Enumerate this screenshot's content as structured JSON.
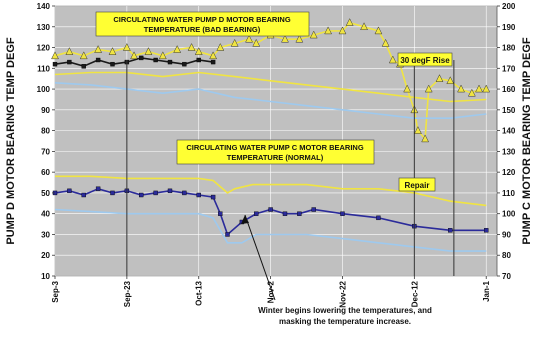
{
  "chart_data": {
    "type": "line",
    "title": "",
    "left_axis_label": "PUMP D MOTOR BEARING TEMP DEGF",
    "right_axis_label": "PUMP C MOTOR BEARING TEMP DEGF",
    "left_ylim": [
      10,
      140
    ],
    "left_yticks": [
      10,
      20,
      30,
      40,
      50,
      60,
      70,
      80,
      90,
      100,
      110,
      120,
      130,
      140
    ],
    "right_ylim": [
      70,
      200
    ],
    "right_yticks": [
      70,
      80,
      90,
      100,
      110,
      120,
      130,
      140,
      150,
      160,
      170,
      180,
      190,
      200
    ],
    "x_ticks": [
      {
        "label": "Sep-3",
        "day": 0
      },
      {
        "label": "Sep-23",
        "day": 20
      },
      {
        "label": "Oct-13",
        "day": 40
      },
      {
        "label": "Nov-2",
        "day": 60
      },
      {
        "label": "Nov-22",
        "day": 80
      },
      {
        "label": "Dec-12",
        "day": 100
      },
      {
        "label": "Jan-1",
        "day": 120
      }
    ],
    "grid": true,
    "background_color": "#c0c0c0",
    "annotations": {
      "pump_d_title": [
        "CIRCULATING WATER PUMP D MOTOR BEARING",
        "TEMPERATURE (BAD BEARING)"
      ],
      "pump_c_title": [
        "CIRCULATING WATER PUMP C MOTOR BEARING",
        "TEMPERATURE (NORMAL)"
      ],
      "rise": "30 degF Rise",
      "repair": "Repair",
      "winter_note": [
        "Winter begins lowering the temperatures, and",
        "masking the temperature increase."
      ]
    },
    "series": [
      {
        "axis": "right",
        "color": "#f0e442",
        "marker": "triangle",
        "points": [
          [
            0,
            176
          ],
          [
            4,
            178
          ],
          [
            8,
            176
          ],
          [
            12,
            179
          ],
          [
            16,
            178
          ],
          [
            20,
            180
          ],
          [
            22,
            176
          ],
          [
            26,
            178
          ],
          [
            30,
            176
          ],
          [
            34,
            179
          ],
          [
            38,
            180
          ],
          [
            40,
            178
          ],
          [
            44,
            176
          ],
          [
            46,
            180
          ],
          [
            50,
            182
          ],
          [
            54,
            184
          ],
          [
            56,
            182
          ],
          [
            60,
            186
          ],
          [
            64,
            184
          ],
          [
            68,
            184
          ],
          [
            72,
            186
          ],
          [
            76,
            188
          ],
          [
            80,
            188
          ],
          [
            82,
            192
          ],
          [
            86,
            190
          ],
          [
            90,
            188
          ],
          [
            92,
            182
          ],
          [
            94,
            174
          ],
          [
            96,
            172
          ],
          [
            98,
            160
          ],
          [
            100,
            150
          ],
          [
            101,
            140
          ],
          [
            103,
            136
          ],
          [
            104,
            160
          ],
          [
            107,
            165
          ],
          [
            110,
            164
          ],
          [
            113,
            160
          ],
          [
            116,
            158
          ],
          [
            118,
            160
          ],
          [
            120,
            160
          ]
        ]
      },
      {
        "axis": "right",
        "color": "#f0e442",
        "marker": "none",
        "points": [
          [
            0,
            167
          ],
          [
            10,
            168
          ],
          [
            20,
            168
          ],
          [
            30,
            166
          ],
          [
            40,
            168
          ],
          [
            50,
            166
          ],
          [
            60,
            164
          ],
          [
            70,
            162
          ],
          [
            80,
            160
          ],
          [
            90,
            158
          ],
          [
            100,
            156
          ],
          [
            110,
            154
          ],
          [
            120,
            155
          ]
        ]
      },
      {
        "axis": "right",
        "color": "#9ec9ee",
        "marker": "none",
        "points": [
          [
            0,
            163
          ],
          [
            10,
            162
          ],
          [
            20,
            160
          ],
          [
            30,
            158
          ],
          [
            40,
            160
          ],
          [
            50,
            156
          ],
          [
            60,
            154
          ],
          [
            70,
            152
          ],
          [
            80,
            150
          ],
          [
            90,
            148
          ],
          [
            100,
            146
          ],
          [
            110,
            146
          ],
          [
            120,
            148
          ]
        ]
      },
      {
        "axis": "left",
        "color": "#1a1a1a",
        "marker": "square",
        "points": [
          [
            0,
            112
          ],
          [
            4,
            113
          ],
          [
            8,
            111
          ],
          [
            12,
            114
          ],
          [
            16,
            112
          ],
          [
            20,
            113
          ],
          [
            24,
            115
          ],
          [
            28,
            114
          ],
          [
            32,
            113
          ],
          [
            36,
            112
          ],
          [
            40,
            114
          ],
          [
            44,
            113
          ]
        ]
      },
      {
        "axis": "left",
        "color": "#f0e442",
        "marker": "none",
        "points": [
          [
            0,
            58
          ],
          [
            10,
            58
          ],
          [
            20,
            57
          ],
          [
            30,
            57
          ],
          [
            40,
            57
          ],
          [
            44,
            56
          ],
          [
            48,
            50
          ],
          [
            50,
            52
          ],
          [
            55,
            54
          ],
          [
            60,
            54
          ],
          [
            70,
            54
          ],
          [
            80,
            52
          ],
          [
            90,
            52
          ],
          [
            100,
            50
          ],
          [
            110,
            46
          ],
          [
            120,
            44
          ]
        ]
      },
      {
        "axis": "left",
        "color": "#2b2b9a",
        "marker": "square",
        "points": [
          [
            0,
            50
          ],
          [
            4,
            51
          ],
          [
            8,
            49
          ],
          [
            12,
            52
          ],
          [
            16,
            50
          ],
          [
            20,
            51
          ],
          [
            24,
            49
          ],
          [
            28,
            50
          ],
          [
            32,
            51
          ],
          [
            36,
            50
          ],
          [
            40,
            49
          ],
          [
            44,
            48
          ],
          [
            46,
            40
          ],
          [
            48,
            30
          ],
          [
            52,
            36
          ],
          [
            56,
            40
          ],
          [
            60,
            42
          ],
          [
            64,
            40
          ],
          [
            68,
            40
          ],
          [
            72,
            42
          ],
          [
            80,
            40
          ],
          [
            90,
            38
          ],
          [
            100,
            34
          ],
          [
            110,
            32
          ],
          [
            120,
            32
          ]
        ]
      },
      {
        "axis": "left",
        "color": "#9ec9ee",
        "marker": "none",
        "points": [
          [
            0,
            42
          ],
          [
            10,
            41
          ],
          [
            20,
            40
          ],
          [
            30,
            40
          ],
          [
            40,
            40
          ],
          [
            44,
            38
          ],
          [
            48,
            26
          ],
          [
            52,
            26
          ],
          [
            56,
            30
          ],
          [
            60,
            30
          ],
          [
            70,
            30
          ],
          [
            80,
            28
          ],
          [
            90,
            26
          ],
          [
            100,
            24
          ],
          [
            110,
            22
          ],
          [
            120,
            22
          ]
        ]
      }
    ],
    "vertical_lines": [
      20,
      100,
      111
    ]
  }
}
